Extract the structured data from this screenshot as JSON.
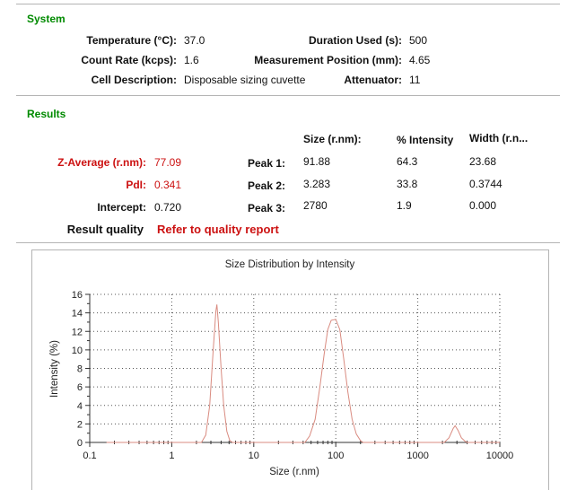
{
  "colors": {
    "heading_green": "#008a00",
    "alert_red": "#cc1111",
    "curve_red": "#d98b80",
    "rule_gray": "#b4b4b4"
  },
  "system": {
    "heading": "System",
    "rows": [
      {
        "label": "Temperature (°C):",
        "value": "37.0",
        "label2": "Duration Used (s):",
        "value2": "500"
      },
      {
        "label": "Count Rate (kcps):",
        "value": "1.6",
        "label2": "Measurement Position (mm):",
        "value2": "4.65"
      },
      {
        "label": "Cell Description:",
        "value": "Disposable sizing cuvette",
        "label2": "Attenuator:",
        "value2": "11"
      }
    ]
  },
  "results": {
    "heading": "Results",
    "columns": [
      "Size (r.nm):",
      "% Intensity",
      "Width (r.n..."
    ],
    "left": [
      {
        "label": "Z-Average (r.nm):",
        "value": "77.09"
      },
      {
        "label": "PdI:",
        "value": "0.341"
      },
      {
        "label": "Intercept:",
        "value": "0.720"
      }
    ],
    "peaks": [
      {
        "label": "Peak 1:",
        "size": "91.88",
        "intensity": "64.3",
        "width": "23.68"
      },
      {
        "label": "Peak 2:",
        "size": "3.283",
        "intensity": "33.8",
        "width": "0.3744"
      },
      {
        "label": "Peak 3:",
        "size": "2780",
        "intensity": "1.9",
        "width": "0.000"
      }
    ],
    "quality_label": "Result quality",
    "quality_value": "Refer to quality report"
  },
  "chart_data": {
    "type": "line",
    "title": "Size Distribution by Intensity",
    "xlabel": "Size (r.nm)",
    "ylabel": "Intensity (%)",
    "x_scale": "log",
    "xlim": [
      0.1,
      10000
    ],
    "ylim": [
      0,
      16
    ],
    "x_ticks": [
      0.1,
      1,
      10,
      100,
      1000,
      10000
    ],
    "x_tick_labels": [
      "0.1",
      "1",
      "10",
      "100",
      "1000",
      "10000"
    ],
    "y_ticks": [
      0,
      2,
      4,
      6,
      8,
      10,
      12,
      14,
      16
    ],
    "grid": true,
    "legend": "none",
    "line_color": "#d98b80",
    "series": [
      {
        "name": "Intensity",
        "points": [
          [
            0.16,
            0
          ],
          [
            1.0,
            0
          ],
          [
            2.0,
            0
          ],
          [
            2.3,
            0
          ],
          [
            2.6,
            0.8
          ],
          [
            2.9,
            4
          ],
          [
            3.2,
            10
          ],
          [
            3.45,
            14.2
          ],
          [
            3.55,
            14.9
          ],
          [
            3.7,
            13
          ],
          [
            4.0,
            8
          ],
          [
            4.3,
            4
          ],
          [
            4.7,
            1.2
          ],
          [
            5.1,
            0.2
          ],
          [
            5.5,
            0
          ],
          [
            10,
            0
          ],
          [
            30,
            0
          ],
          [
            42,
            0
          ],
          [
            48,
            0.7
          ],
          [
            56,
            2.5
          ],
          [
            64,
            6
          ],
          [
            72,
            9.5
          ],
          [
            80,
            12.2
          ],
          [
            88,
            13.2
          ],
          [
            100,
            13.3
          ],
          [
            112,
            12.2
          ],
          [
            125,
            9
          ],
          [
            140,
            5.5
          ],
          [
            158,
            2.5
          ],
          [
            178,
            0.9
          ],
          [
            200,
            0.2
          ],
          [
            215,
            0
          ],
          [
            500,
            0
          ],
          [
            1000,
            0
          ],
          [
            2100,
            0
          ],
          [
            2400,
            0.5
          ],
          [
            2700,
            1.5
          ],
          [
            2850,
            1.8
          ],
          [
            3100,
            1.3
          ],
          [
            3400,
            0.5
          ],
          [
            3800,
            0.1
          ],
          [
            4000,
            0
          ],
          [
            7000,
            0
          ],
          [
            10000,
            0
          ]
        ]
      }
    ],
    "peaks_annotation": [
      {
        "x": 3.5,
        "y": 14.9
      },
      {
        "x": 95,
        "y": 13.3
      },
      {
        "x": 2850,
        "y": 1.8
      }
    ]
  }
}
